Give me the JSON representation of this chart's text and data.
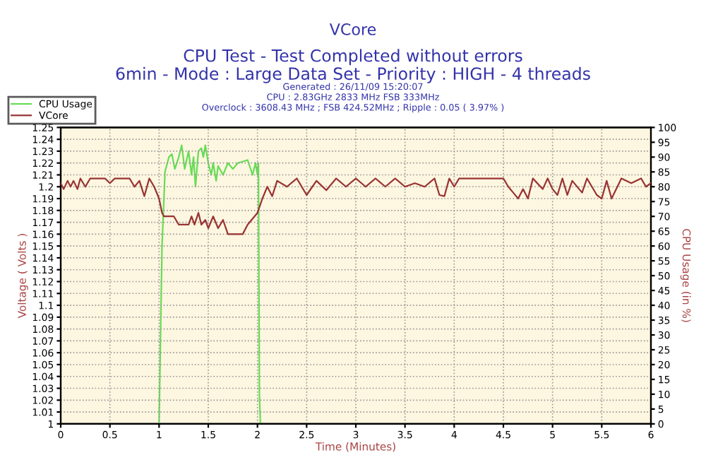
{
  "chart_data": {
    "type": "line",
    "title": "VCore",
    "subtitle": "CPU Test - Test Completed without errors\n6min - Mode : Large Data Set - Priority : HIGH - 4 threads",
    "annotations": [
      "Generated : 26/11/09 15:20:07",
      "CPU : 2.83GHz 2833 MHz FSB 333MHz",
      "Overclock : 3608.43 MHz ; FSB 424.52MHz ; Ripple : 0.05 ( 3.97% )"
    ],
    "xlabel": "Time (Minutes)",
    "ylabel": "Voltage ( Volts )",
    "y2label": "CPU Usage (in %)",
    "series": [
      {
        "name": "CPU Usage",
        "color": "#66dd55",
        "axis": "y2",
        "x": [
          1.0,
          1.03,
          1.06,
          1.1,
          1.13,
          1.16,
          1.2,
          1.23,
          1.26,
          1.3,
          1.33,
          1.35,
          1.37,
          1.4,
          1.43,
          1.45,
          1.47,
          1.5,
          1.53,
          1.55,
          1.58,
          1.6,
          1.65,
          1.7,
          1.75,
          1.8,
          1.9,
          1.95,
          1.98,
          2.0,
          2.01,
          2.02,
          2.03
        ],
        "values": [
          0,
          60,
          85,
          90,
          91,
          86,
          90,
          94,
          86,
          92,
          84,
          90,
          80,
          92,
          93,
          90,
          94,
          88,
          84,
          88,
          82,
          87,
          84,
          88,
          86,
          88,
          89,
          84,
          88,
          84,
          88,
          10,
          0
        ]
      },
      {
        "name": "VCore",
        "color": "#993333",
        "x": [
          0,
          0.03,
          0.07,
          0.1,
          0.13,
          0.17,
          0.2,
          0.25,
          0.3,
          0.45,
          0.5,
          0.55,
          0.7,
          0.75,
          0.8,
          0.85,
          0.9,
          0.95,
          1.0,
          1.03,
          1.05,
          1.15,
          1.2,
          1.3,
          1.33,
          1.36,
          1.4,
          1.43,
          1.47,
          1.5,
          1.55,
          1.6,
          1.65,
          1.7,
          1.85,
          1.9,
          2.0,
          2.05,
          2.1,
          2.15,
          2.2,
          2.3,
          2.4,
          2.5,
          2.6,
          2.7,
          2.8,
          2.9,
          3.0,
          3.1,
          3.2,
          3.3,
          3.4,
          3.5,
          3.6,
          3.7,
          3.8,
          3.85,
          3.9,
          3.95,
          4.0,
          4.05,
          4.5,
          4.55,
          4.6,
          4.65,
          4.7,
          4.75,
          4.8,
          4.9,
          4.95,
          5.0,
          5.05,
          5.1,
          5.15,
          5.2,
          5.3,
          5.35,
          5.45,
          5.5,
          5.55,
          5.6,
          5.7,
          5.8,
          5.9,
          5.95,
          6.0
        ],
        "values": [
          1.203,
          1.198,
          1.205,
          1.2,
          1.205,
          1.198,
          1.207,
          1.2,
          1.207,
          1.207,
          1.203,
          1.207,
          1.207,
          1.2,
          1.205,
          1.192,
          1.207,
          1.2,
          1.19,
          1.178,
          1.175,
          1.175,
          1.168,
          1.168,
          1.175,
          1.168,
          1.178,
          1.168,
          1.172,
          1.165,
          1.175,
          1.165,
          1.172,
          1.16,
          1.16,
          1.168,
          1.178,
          1.19,
          1.2,
          1.192,
          1.205,
          1.2,
          1.207,
          1.193,
          1.205,
          1.197,
          1.207,
          1.2,
          1.207,
          1.2,
          1.207,
          1.2,
          1.207,
          1.2,
          1.203,
          1.2,
          1.207,
          1.193,
          1.192,
          1.207,
          1.2,
          1.207,
          1.207,
          1.2,
          1.195,
          1.19,
          1.198,
          1.19,
          1.207,
          1.198,
          1.207,
          1.198,
          1.193,
          1.207,
          1.193,
          1.205,
          1.195,
          1.207,
          1.193,
          1.19,
          1.205,
          1.19,
          1.207,
          1.203,
          1.207,
          1.2,
          1.203
        ]
      }
    ],
    "xlim": [
      0,
      6
    ],
    "xticks": [
      0,
      0.5,
      1,
      1.5,
      2,
      2.5,
      3,
      3.5,
      4,
      4.5,
      5,
      5.5,
      6
    ],
    "ylim": [
      1,
      1.25
    ],
    "yticks": [
      1,
      1.01,
      1.02,
      1.03,
      1.04,
      1.05,
      1.06,
      1.07,
      1.08,
      1.09,
      1.1,
      1.11,
      1.12,
      1.13,
      1.14,
      1.15,
      1.16,
      1.17,
      1.18,
      1.19,
      1.2,
      1.21,
      1.22,
      1.23,
      1.24,
      1.25
    ],
    "y2lim": [
      0,
      100
    ],
    "y2ticks": [
      0,
      5,
      10,
      15,
      20,
      25,
      30,
      35,
      40,
      45,
      50,
      55,
      60,
      65,
      70,
      75,
      80,
      85,
      90,
      95,
      100
    ],
    "grid": true,
    "legend": "top left",
    "marker": "none",
    "line_style": "solid"
  }
}
